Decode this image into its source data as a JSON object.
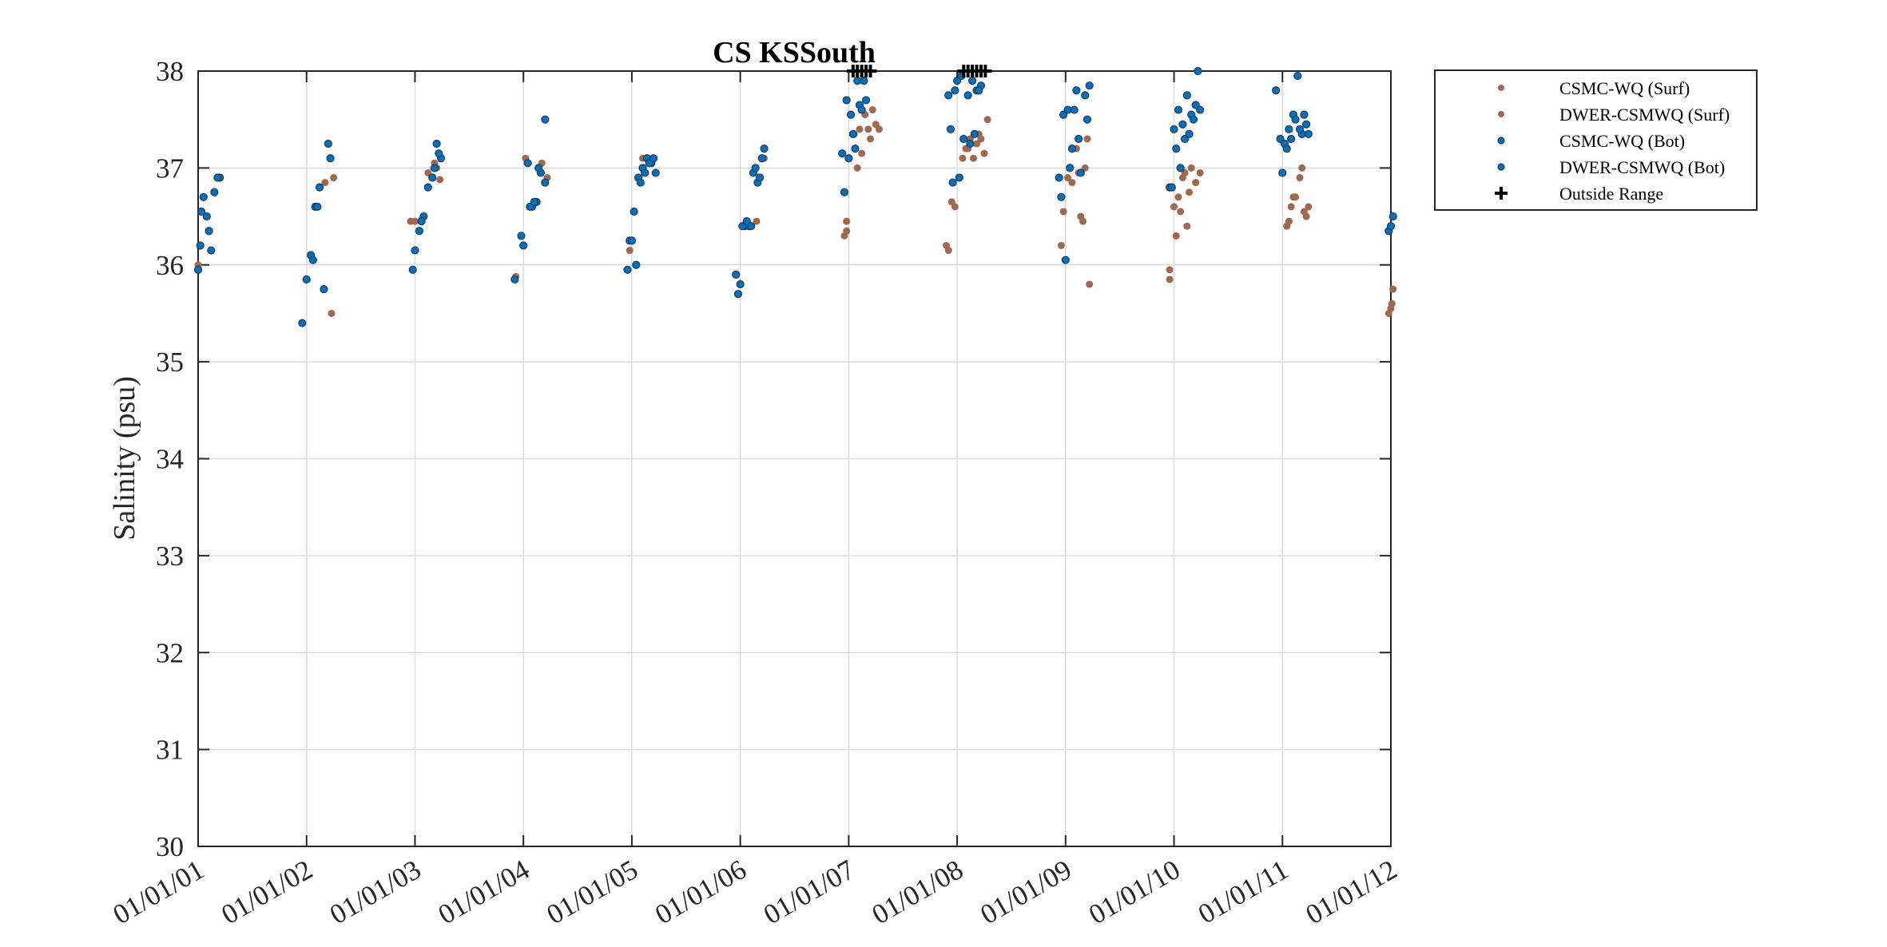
{
  "chart_data": {
    "type": "scatter",
    "title": "CS KSSouth",
    "xlabel": "",
    "ylabel": "Salinity (psu)",
    "ylim": [
      30,
      38
    ],
    "xlim": [
      2001,
      2012
    ],
    "grid": true,
    "legend_position": "outside-top-right",
    "y_ticks": [
      "30",
      "31",
      "32",
      "33",
      "34",
      "35",
      "36",
      "37",
      "38"
    ],
    "x_ticks": [
      "01/01/01",
      "01/01/02",
      "01/01/03",
      "01/01/04",
      "01/01/05",
      "01/01/06",
      "01/01/07",
      "01/01/08",
      "01/01/09",
      "01/01/10",
      "01/01/11",
      "01/01/12"
    ],
    "x_tick_values": [
      2001,
      2002,
      2003,
      2004,
      2005,
      2006,
      2007,
      2008,
      2009,
      2010,
      2011,
      2012
    ],
    "colors": {
      "surf": "#a0694f",
      "bot": "#0072bd",
      "bot_edge": "#1e3a5a",
      "outside": "#000000",
      "grid": "#dcdcdc",
      "axis": "#262626"
    },
    "series": [
      {
        "name": "CSMC-WQ (Surf)",
        "kind": "surf",
        "x": [
          2002.17,
          2002.23,
          2002.25,
          2003.12,
          2003.18,
          2003.23,
          2004.02,
          2004.17,
          2004.22,
          2006.15,
          2006.22,
          2006.96,
          2006.98,
          2007.1,
          2007.12,
          2007.15,
          2007.18,
          2007.2,
          2007.22,
          2007.25,
          2007.9,
          2007.95,
          2008.1,
          2008.12,
          2008.15,
          2008.18,
          2008.2,
          2008.25,
          2008.96,
          2008.98,
          2009.02,
          2009.06,
          2009.1,
          2009.14,
          2009.18,
          2009.22,
          2009.96,
          2010.0,
          2010.04,
          2010.08,
          2010.12,
          2010.16,
          2010.2,
          2011.04,
          2011.08,
          2011.12,
          2011.16,
          2011.2,
          2011.22,
          2012.0,
          2012.02
        ],
        "y": [
          36.85,
          35.5,
          36.9,
          36.95,
          37.05,
          36.88,
          37.1,
          37.05,
          36.9,
          36.45,
          37.1,
          36.3,
          36.45,
          37.4,
          37.15,
          37.55,
          37.4,
          37.3,
          37.6,
          37.45,
          36.2,
          36.65,
          37.2,
          37.3,
          37.1,
          37.25,
          37.35,
          37.15,
          36.2,
          36.55,
          36.9,
          36.85,
          37.2,
          36.5,
          37.0,
          35.8,
          35.85,
          36.6,
          36.7,
          36.9,
          36.4,
          37.0,
          36.85,
          36.4,
          36.6,
          36.7,
          36.9,
          36.55,
          36.5,
          35.55,
          35.75
        ]
      },
      {
        "name": "DWER-CSMWQ (Surf)",
        "kind": "surf",
        "x": [
          2001.0,
          2002.96,
          2003.0,
          2003.2,
          2003.93,
          2004.98,
          2005.1,
          2005.15,
          2006.98,
          2007.05,
          2007.08,
          2007.28,
          2007.92,
          2007.98,
          2008.05,
          2008.08,
          2008.22,
          2008.28,
          2009.0,
          2009.12,
          2009.16,
          2009.2,
          2009.96,
          2010.02,
          2010.06,
          2010.1,
          2010.14,
          2010.24,
          2011.06,
          2011.1,
          2011.18,
          2011.24,
          2011.98,
          2012.01
        ],
        "y": [
          36.0,
          36.45,
          36.45,
          37.0,
          35.88,
          36.15,
          37.1,
          37.1,
          36.35,
          37.35,
          37.0,
          37.4,
          36.15,
          36.6,
          37.1,
          37.2,
          37.3,
          37.5,
          36.05,
          36.95,
          36.45,
          37.3,
          35.95,
          36.3,
          36.55,
          36.95,
          36.75,
          36.95,
          36.45,
          36.7,
          37.0,
          36.6,
          35.5,
          35.6
        ]
      },
      {
        "name": "CSMC-WQ (Bot)",
        "kind": "bot",
        "x": [
          2001.02,
          2001.05,
          2001.08,
          2001.12,
          2001.15,
          2001.2,
          2001.96,
          2002.0,
          2002.04,
          2002.08,
          2002.12,
          2002.16,
          2002.2,
          2002.22,
          2002.98,
          2003.04,
          2003.08,
          2003.12,
          2003.16,
          2003.2,
          2003.24,
          2003.98,
          2004.04,
          2004.08,
          2004.12,
          2004.16,
          2004.2,
          2004.96,
          2004.98,
          2005.02,
          2005.06,
          2005.1,
          2005.14,
          2005.18,
          2005.22,
          2005.96,
          2005.98,
          2006.04,
          2006.08,
          2006.12,
          2006.16,
          2006.2,
          2006.94,
          2006.96,
          2006.98,
          2007.02,
          2007.06,
          2007.1,
          2007.14,
          2007.94,
          2007.96,
          2007.98,
          2008.0,
          2008.04,
          2008.1,
          2008.14,
          2008.18,
          2008.22,
          2008.94,
          2008.98,
          2009.02,
          2009.06,
          2009.1,
          2009.14,
          2009.18,
          2009.22,
          2009.96,
          2010.0,
          2010.04,
          2010.08,
          2010.12,
          2010.16,
          2010.2,
          2010.24,
          2010.94,
          2010.98,
          2011.02,
          2011.06,
          2011.1,
          2011.14,
          2011.18,
          2011.22,
          2011.98,
          2012.0,
          2012.02
        ],
        "y": [
          36.2,
          36.7,
          36.5,
          36.15,
          36.75,
          36.9,
          35.4,
          35.85,
          36.1,
          36.6,
          36.8,
          35.75,
          37.25,
          37.1,
          35.95,
          36.35,
          36.5,
          36.8,
          36.9,
          37.25,
          37.1,
          36.3,
          37.05,
          36.6,
          36.65,
          36.95,
          37.5,
          35.95,
          36.25,
          36.55,
          36.9,
          37.0,
          37.1,
          37.05,
          36.95,
          35.9,
          35.7,
          36.4,
          36.4,
          36.95,
          36.85,
          37.1,
          37.15,
          36.75,
          37.7,
          37.55,
          37.2,
          37.65,
          37.9,
          37.4,
          36.85,
          37.8,
          37.9,
          37.95,
          37.75,
          37.9,
          37.8,
          37.85,
          36.9,
          37.55,
          37.6,
          37.2,
          37.8,
          36.95,
          37.75,
          37.85,
          36.8,
          37.4,
          37.6,
          37.45,
          37.75,
          37.55,
          37.65,
          37.6,
          37.8,
          37.3,
          37.25,
          37.4,
          37.55,
          37.95,
          37.35,
          37.45,
          36.35,
          36.4,
          36.5
        ]
      },
      {
        "name": "DWER-CSMWQ (Bot)",
        "kind": "bot",
        "x": [
          2001.0,
          2001.03,
          2001.1,
          2001.18,
          2002.06,
          2002.1,
          2003.0,
          2003.06,
          2003.18,
          2003.22,
          2003.92,
          2004.0,
          2004.06,
          2004.1,
          2004.14,
          2004.2,
          2005.0,
          2005.04,
          2005.08,
          2005.12,
          2005.16,
          2005.2,
          2006.0,
          2006.02,
          2006.06,
          2006.1,
          2006.14,
          2006.18,
          2006.22,
          2007.0,
          2007.04,
          2007.08,
          2007.12,
          2007.16,
          2007.92,
          2008.02,
          2008.06,
          2008.12,
          2008.16,
          2008.2,
          2008.96,
          2009.0,
          2009.04,
          2009.08,
          2009.12,
          2009.2,
          2009.98,
          2010.02,
          2010.06,
          2010.1,
          2010.14,
          2010.18,
          2010.22,
          2011.0,
          2011.04,
          2011.08,
          2011.12,
          2011.16,
          2011.2,
          2011.24
        ],
        "y": [
          35.95,
          36.55,
          36.35,
          36.9,
          36.05,
          36.6,
          36.15,
          36.45,
          37.0,
          37.15,
          35.85,
          36.2,
          36.6,
          36.65,
          37.0,
          36.85,
          36.25,
          36.0,
          36.85,
          36.95,
          37.05,
          37.1,
          35.8,
          36.4,
          36.45,
          36.4,
          37.0,
          36.9,
          37.2,
          37.1,
          37.35,
          37.9,
          37.6,
          37.7,
          37.75,
          36.9,
          37.3,
          37.25,
          37.35,
          37.8,
          36.7,
          36.05,
          37.0,
          37.6,
          37.3,
          37.5,
          36.8,
          37.2,
          37.0,
          37.3,
          37.35,
          37.5,
          38.0,
          36.95,
          37.2,
          37.3,
          37.5,
          37.4,
          37.55,
          37.35
        ]
      },
      {
        "name": "Outside Range",
        "kind": "outside",
        "x": [
          2007.04,
          2007.08,
          2007.12,
          2007.16,
          2007.2,
          2008.06,
          2008.1,
          2008.14,
          2008.18,
          2008.22,
          2008.26
        ],
        "y": [
          38,
          38,
          38,
          38,
          38,
          38,
          38,
          38,
          38,
          38,
          38
        ]
      }
    ]
  }
}
